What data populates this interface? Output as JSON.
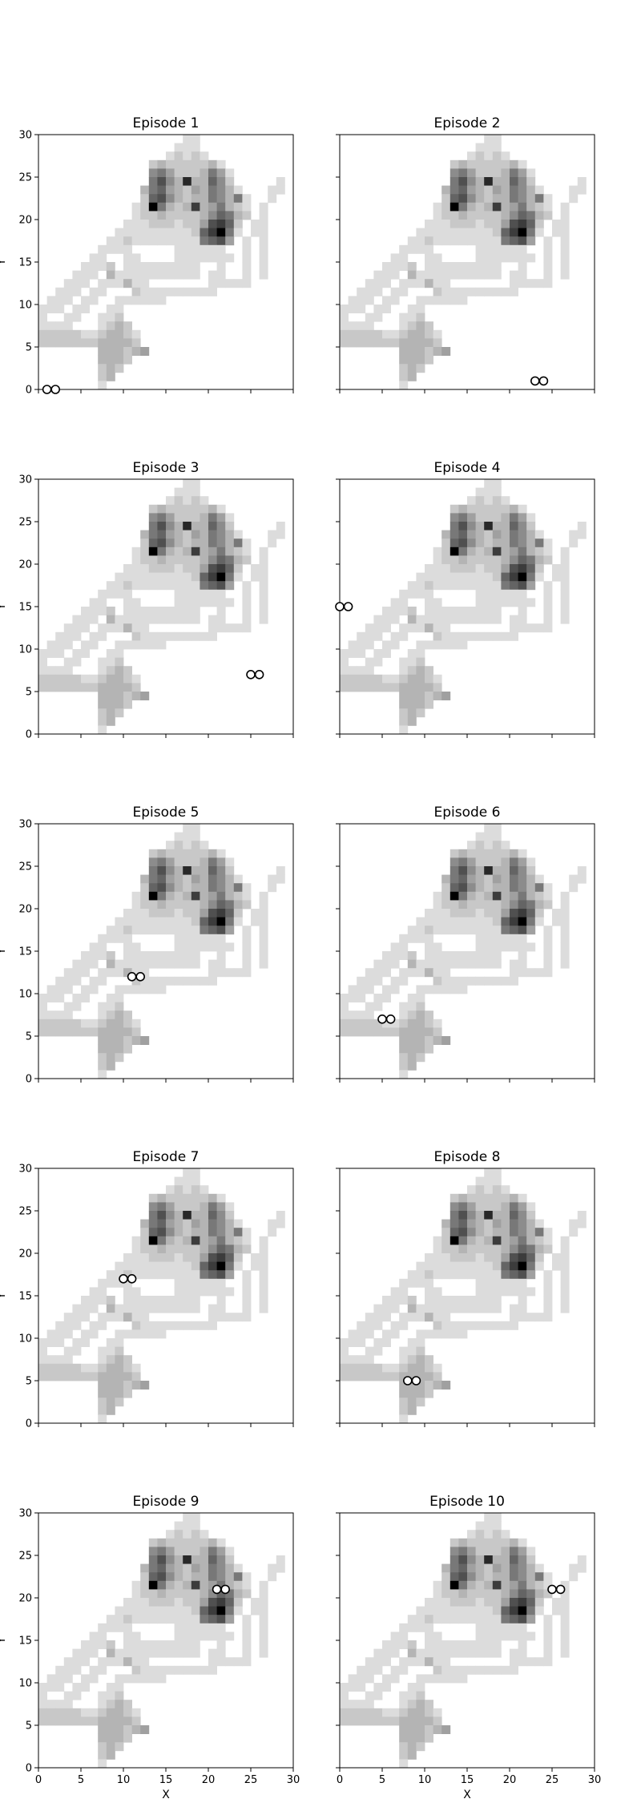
{
  "chart_data": {
    "type": "heatmap",
    "grid_size": 30,
    "xlim": [
      0,
      30
    ],
    "ylim": [
      0,
      30
    ],
    "xticks": [
      "0",
      "5",
      "10",
      "15",
      "20",
      "25",
      "30"
    ],
    "yticks": [
      "0",
      "5",
      "10",
      "15",
      "20",
      "25",
      "30"
    ],
    "xlabel": "X",
    "ylabel": "Y",
    "grid": false,
    "colormap": "Greys",
    "marker_edge_color": "#000000",
    "heatmap_cells": [
      [
        17,
        29,
        1
      ],
      [
        18,
        29,
        1
      ],
      [
        16,
        28,
        1
      ],
      [
        17,
        28,
        1
      ],
      [
        18,
        28,
        1
      ],
      [
        15,
        27,
        1
      ],
      [
        16,
        27,
        2
      ],
      [
        17,
        27,
        1
      ],
      [
        18,
        27,
        2
      ],
      [
        19,
        27,
        1
      ],
      [
        13,
        26,
        2
      ],
      [
        14,
        26,
        3
      ],
      [
        15,
        26,
        2
      ],
      [
        16,
        26,
        2
      ],
      [
        17,
        26,
        2
      ],
      [
        18,
        26,
        2
      ],
      [
        19,
        26,
        2
      ],
      [
        20,
        26,
        3
      ],
      [
        21,
        26,
        1
      ],
      [
        13,
        25,
        5
      ],
      [
        14,
        25,
        6
      ],
      [
        15,
        25,
        4
      ],
      [
        16,
        25,
        2
      ],
      [
        17,
        25,
        2
      ],
      [
        18,
        25,
        2
      ],
      [
        19,
        25,
        3
      ],
      [
        20,
        25,
        6
      ],
      [
        21,
        25,
        4
      ],
      [
        22,
        25,
        1
      ],
      [
        13,
        24,
        6
      ],
      [
        14,
        24,
        8
      ],
      [
        15,
        24,
        5
      ],
      [
        16,
        24,
        3
      ],
      [
        17,
        24,
        10
      ],
      [
        18,
        24,
        3
      ],
      [
        19,
        24,
        3
      ],
      [
        20,
        24,
        7
      ],
      [
        21,
        24,
        5
      ],
      [
        22,
        24,
        2
      ],
      [
        28,
        24,
        1
      ],
      [
        12,
        23,
        3
      ],
      [
        13,
        23,
        6
      ],
      [
        14,
        23,
        7
      ],
      [
        15,
        23,
        4
      ],
      [
        16,
        23,
        3
      ],
      [
        17,
        23,
        2
      ],
      [
        18,
        23,
        4
      ],
      [
        19,
        23,
        3
      ],
      [
        20,
        23,
        6
      ],
      [
        21,
        23,
        5
      ],
      [
        22,
        23,
        3
      ],
      [
        23,
        23,
        1
      ],
      [
        27,
        23,
        1
      ],
      [
        28,
        23,
        1
      ],
      [
        12,
        22,
        2
      ],
      [
        13,
        22,
        7
      ],
      [
        14,
        22,
        8
      ],
      [
        15,
        22,
        5
      ],
      [
        16,
        22,
        3
      ],
      [
        17,
        22,
        2
      ],
      [
        18,
        22,
        3
      ],
      [
        19,
        22,
        3
      ],
      [
        20,
        22,
        6
      ],
      [
        21,
        22,
        5
      ],
      [
        22,
        22,
        3
      ],
      [
        23,
        22,
        6
      ],
      [
        24,
        22,
        1
      ],
      [
        27,
        22,
        1
      ],
      [
        11,
        21,
        1
      ],
      [
        12,
        21,
        2
      ],
      [
        13,
        21,
        12
      ],
      [
        14,
        21,
        6
      ],
      [
        15,
        21,
        3
      ],
      [
        16,
        21,
        2
      ],
      [
        17,
        21,
        3
      ],
      [
        18,
        21,
        9
      ],
      [
        19,
        21,
        3
      ],
      [
        20,
        21,
        4
      ],
      [
        21,
        21,
        6
      ],
      [
        22,
        21,
        3
      ],
      [
        23,
        21,
        2
      ],
      [
        24,
        21,
        1
      ],
      [
        26,
        21,
        1
      ],
      [
        11,
        20,
        1
      ],
      [
        12,
        20,
        2
      ],
      [
        13,
        20,
        2
      ],
      [
        14,
        20,
        3
      ],
      [
        15,
        20,
        2
      ],
      [
        16,
        20,
        2
      ],
      [
        17,
        20,
        2
      ],
      [
        18,
        20,
        2
      ],
      [
        19,
        20,
        3
      ],
      [
        20,
        20,
        5
      ],
      [
        21,
        20,
        7
      ],
      [
        22,
        20,
        6
      ],
      [
        23,
        20,
        3
      ],
      [
        24,
        20,
        2
      ],
      [
        26,
        20,
        1
      ],
      [
        10,
        19,
        1
      ],
      [
        11,
        19,
        1
      ],
      [
        12,
        19,
        1
      ],
      [
        13,
        19,
        2
      ],
      [
        14,
        19,
        2
      ],
      [
        15,
        19,
        2
      ],
      [
        16,
        19,
        1
      ],
      [
        17,
        19,
        2
      ],
      [
        18,
        19,
        2
      ],
      [
        19,
        19,
        4
      ],
      [
        20,
        19,
        8
      ],
      [
        21,
        19,
        9
      ],
      [
        22,
        19,
        7
      ],
      [
        23,
        19,
        2
      ],
      [
        25,
        19,
        1
      ],
      [
        26,
        19,
        1
      ],
      [
        9,
        18,
        1
      ],
      [
        10,
        18,
        1
      ],
      [
        11,
        18,
        1
      ],
      [
        12,
        18,
        1
      ],
      [
        13,
        18,
        1
      ],
      [
        14,
        18,
        1
      ],
      [
        15,
        18,
        1
      ],
      [
        16,
        18,
        1
      ],
      [
        17,
        18,
        1
      ],
      [
        18,
        18,
        2
      ],
      [
        19,
        18,
        7
      ],
      [
        20,
        18,
        9
      ],
      [
        21,
        18,
        12
      ],
      [
        22,
        18,
        6
      ],
      [
        23,
        18,
        1
      ],
      [
        25,
        18,
        1
      ],
      [
        26,
        18,
        1
      ],
      [
        8,
        17,
        1
      ],
      [
        9,
        17,
        1
      ],
      [
        10,
        17,
        2
      ],
      [
        11,
        17,
        1
      ],
      [
        12,
        17,
        1
      ],
      [
        13,
        17,
        1
      ],
      [
        14,
        17,
        1
      ],
      [
        15,
        17,
        1
      ],
      [
        16,
        17,
        1
      ],
      [
        17,
        17,
        1
      ],
      [
        18,
        17,
        1
      ],
      [
        19,
        17,
        6
      ],
      [
        20,
        17,
        7
      ],
      [
        21,
        17,
        8
      ],
      [
        22,
        17,
        4
      ],
      [
        24,
        17,
        1
      ],
      [
        26,
        17,
        1
      ],
      [
        7,
        16,
        1
      ],
      [
        8,
        16,
        1
      ],
      [
        9,
        16,
        1
      ],
      [
        10,
        16,
        1
      ],
      [
        16,
        16,
        1
      ],
      [
        17,
        16,
        1
      ],
      [
        18,
        16,
        1
      ],
      [
        19,
        16,
        1
      ],
      [
        20,
        16,
        1
      ],
      [
        21,
        16,
        1
      ],
      [
        24,
        16,
        1
      ],
      [
        26,
        16,
        1
      ],
      [
        6,
        15,
        1
      ],
      [
        7,
        15,
        1
      ],
      [
        10,
        15,
        1
      ],
      [
        11,
        15,
        1
      ],
      [
        16,
        15,
        1
      ],
      [
        17,
        15,
        1
      ],
      [
        18,
        15,
        1
      ],
      [
        19,
        15,
        1
      ],
      [
        20,
        15,
        1
      ],
      [
        21,
        15,
        1
      ],
      [
        22,
        15,
        1
      ],
      [
        24,
        15,
        1
      ],
      [
        26,
        15,
        1
      ],
      [
        5,
        14,
        1
      ],
      [
        6,
        14,
        1
      ],
      [
        7,
        14,
        1
      ],
      [
        8,
        14,
        2
      ],
      [
        10,
        14,
        1
      ],
      [
        11,
        14,
        1
      ],
      [
        12,
        14,
        1
      ],
      [
        13,
        14,
        1
      ],
      [
        14,
        14,
        1
      ],
      [
        15,
        14,
        1
      ],
      [
        16,
        14,
        1
      ],
      [
        17,
        14,
        1
      ],
      [
        18,
        14,
        1
      ],
      [
        21,
        14,
        1
      ],
      [
        24,
        14,
        1
      ],
      [
        26,
        14,
        1
      ],
      [
        4,
        13,
        1
      ],
      [
        5,
        13,
        1
      ],
      [
        6,
        13,
        1
      ],
      [
        8,
        13,
        3
      ],
      [
        9,
        13,
        1
      ],
      [
        10,
        13,
        1
      ],
      [
        11,
        13,
        1
      ],
      [
        12,
        13,
        1
      ],
      [
        13,
        13,
        1
      ],
      [
        14,
        13,
        1
      ],
      [
        15,
        13,
        1
      ],
      [
        16,
        13,
        1
      ],
      [
        17,
        13,
        1
      ],
      [
        18,
        13,
        1
      ],
      [
        20,
        13,
        1
      ],
      [
        21,
        13,
        1
      ],
      [
        24,
        13,
        1
      ],
      [
        26,
        13,
        1
      ],
      [
        3,
        12,
        1
      ],
      [
        4,
        12,
        1
      ],
      [
        5,
        12,
        1
      ],
      [
        7,
        12,
        1
      ],
      [
        8,
        12,
        1
      ],
      [
        9,
        12,
        1
      ],
      [
        10,
        12,
        3
      ],
      [
        11,
        12,
        1
      ],
      [
        12,
        12,
        1
      ],
      [
        20,
        12,
        1
      ],
      [
        21,
        12,
        1
      ],
      [
        22,
        12,
        1
      ],
      [
        23,
        12,
        1
      ],
      [
        24,
        12,
        1
      ],
      [
        2,
        11,
        1
      ],
      [
        3,
        11,
        1
      ],
      [
        4,
        11,
        1
      ],
      [
        6,
        11,
        1
      ],
      [
        7,
        11,
        1
      ],
      [
        11,
        11,
        2
      ],
      [
        12,
        11,
        1
      ],
      [
        13,
        11,
        1
      ],
      [
        14,
        11,
        1
      ],
      [
        15,
        11,
        1
      ],
      [
        16,
        11,
        1
      ],
      [
        17,
        11,
        1
      ],
      [
        18,
        11,
        1
      ],
      [
        19,
        11,
        1
      ],
      [
        20,
        11,
        1
      ],
      [
        1,
        10,
        1
      ],
      [
        2,
        10,
        1
      ],
      [
        3,
        10,
        1
      ],
      [
        5,
        10,
        1
      ],
      [
        6,
        10,
        1
      ],
      [
        9,
        10,
        1
      ],
      [
        10,
        10,
        1
      ],
      [
        11,
        10,
        1
      ],
      [
        12,
        10,
        1
      ],
      [
        13,
        10,
        1
      ],
      [
        14,
        10,
        1
      ],
      [
        0,
        9,
        1
      ],
      [
        1,
        9,
        1
      ],
      [
        2,
        9,
        1
      ],
      [
        4,
        9,
        1
      ],
      [
        5,
        9,
        1
      ],
      [
        8,
        9,
        1
      ],
      [
        9,
        9,
        1
      ],
      [
        0,
        8,
        1
      ],
      [
        3,
        8,
        1
      ],
      [
        4,
        8,
        1
      ],
      [
        7,
        8,
        1
      ],
      [
        8,
        8,
        1
      ],
      [
        9,
        8,
        2
      ],
      [
        0,
        7,
        1
      ],
      [
        1,
        7,
        1
      ],
      [
        2,
        7,
        1
      ],
      [
        3,
        7,
        1
      ],
      [
        7,
        7,
        1
      ],
      [
        8,
        7,
        2
      ],
      [
        9,
        7,
        3
      ],
      [
        10,
        7,
        2
      ],
      [
        0,
        6,
        2
      ],
      [
        1,
        6,
        2
      ],
      [
        2,
        6,
        2
      ],
      [
        3,
        6,
        2
      ],
      [
        4,
        6,
        2
      ],
      [
        5,
        6,
        1
      ],
      [
        6,
        6,
        1
      ],
      [
        7,
        6,
        2
      ],
      [
        8,
        6,
        3
      ],
      [
        9,
        6,
        3
      ],
      [
        10,
        6,
        2
      ],
      [
        11,
        6,
        1
      ],
      [
        0,
        5,
        2
      ],
      [
        1,
        5,
        2
      ],
      [
        2,
        5,
        2
      ],
      [
        3,
        5,
        2
      ],
      [
        4,
        5,
        2
      ],
      [
        5,
        5,
        2
      ],
      [
        6,
        5,
        2
      ],
      [
        7,
        5,
        3
      ],
      [
        8,
        5,
        3
      ],
      [
        9,
        5,
        3
      ],
      [
        10,
        5,
        3
      ],
      [
        11,
        5,
        2
      ],
      [
        7,
        4,
        3
      ],
      [
        8,
        4,
        3
      ],
      [
        9,
        4,
        3
      ],
      [
        10,
        4,
        2
      ],
      [
        11,
        4,
        3
      ],
      [
        12,
        4,
        4
      ],
      [
        7,
        3,
        3
      ],
      [
        8,
        3,
        3
      ],
      [
        9,
        3,
        3
      ],
      [
        10,
        3,
        2
      ],
      [
        7,
        2,
        2
      ],
      [
        8,
        2,
        3
      ],
      [
        9,
        2,
        2
      ],
      [
        7,
        1,
        2
      ],
      [
        8,
        1,
        3
      ],
      [
        7,
        0,
        1
      ]
    ],
    "panels": [
      {
        "title": "Episode 1",
        "markers": [
          [
            1,
            0
          ],
          [
            2,
            0
          ]
        ]
      },
      {
        "title": "Episode 2",
        "markers": [
          [
            23,
            1
          ],
          [
            24,
            1
          ]
        ]
      },
      {
        "title": "Episode 3",
        "markers": [
          [
            25,
            7
          ],
          [
            26,
            7
          ]
        ]
      },
      {
        "title": "Episode 4",
        "markers": [
          [
            0,
            15
          ],
          [
            1,
            15
          ]
        ]
      },
      {
        "title": "Episode 5",
        "markers": [
          [
            11,
            12
          ],
          [
            12,
            12
          ]
        ]
      },
      {
        "title": "Episode 6",
        "markers": [
          [
            5,
            7
          ],
          [
            6,
            7
          ]
        ]
      },
      {
        "title": "Episode 7",
        "markers": [
          [
            10,
            17
          ],
          [
            11,
            17
          ]
        ]
      },
      {
        "title": "Episode 8",
        "markers": [
          [
            8,
            5
          ],
          [
            9,
            5
          ]
        ]
      },
      {
        "title": "Episode 9",
        "markers": [
          [
            21,
            21
          ],
          [
            22,
            21
          ]
        ]
      },
      {
        "title": "Episode 10",
        "markers": [
          [
            25,
            21
          ],
          [
            26,
            21
          ]
        ]
      }
    ]
  }
}
